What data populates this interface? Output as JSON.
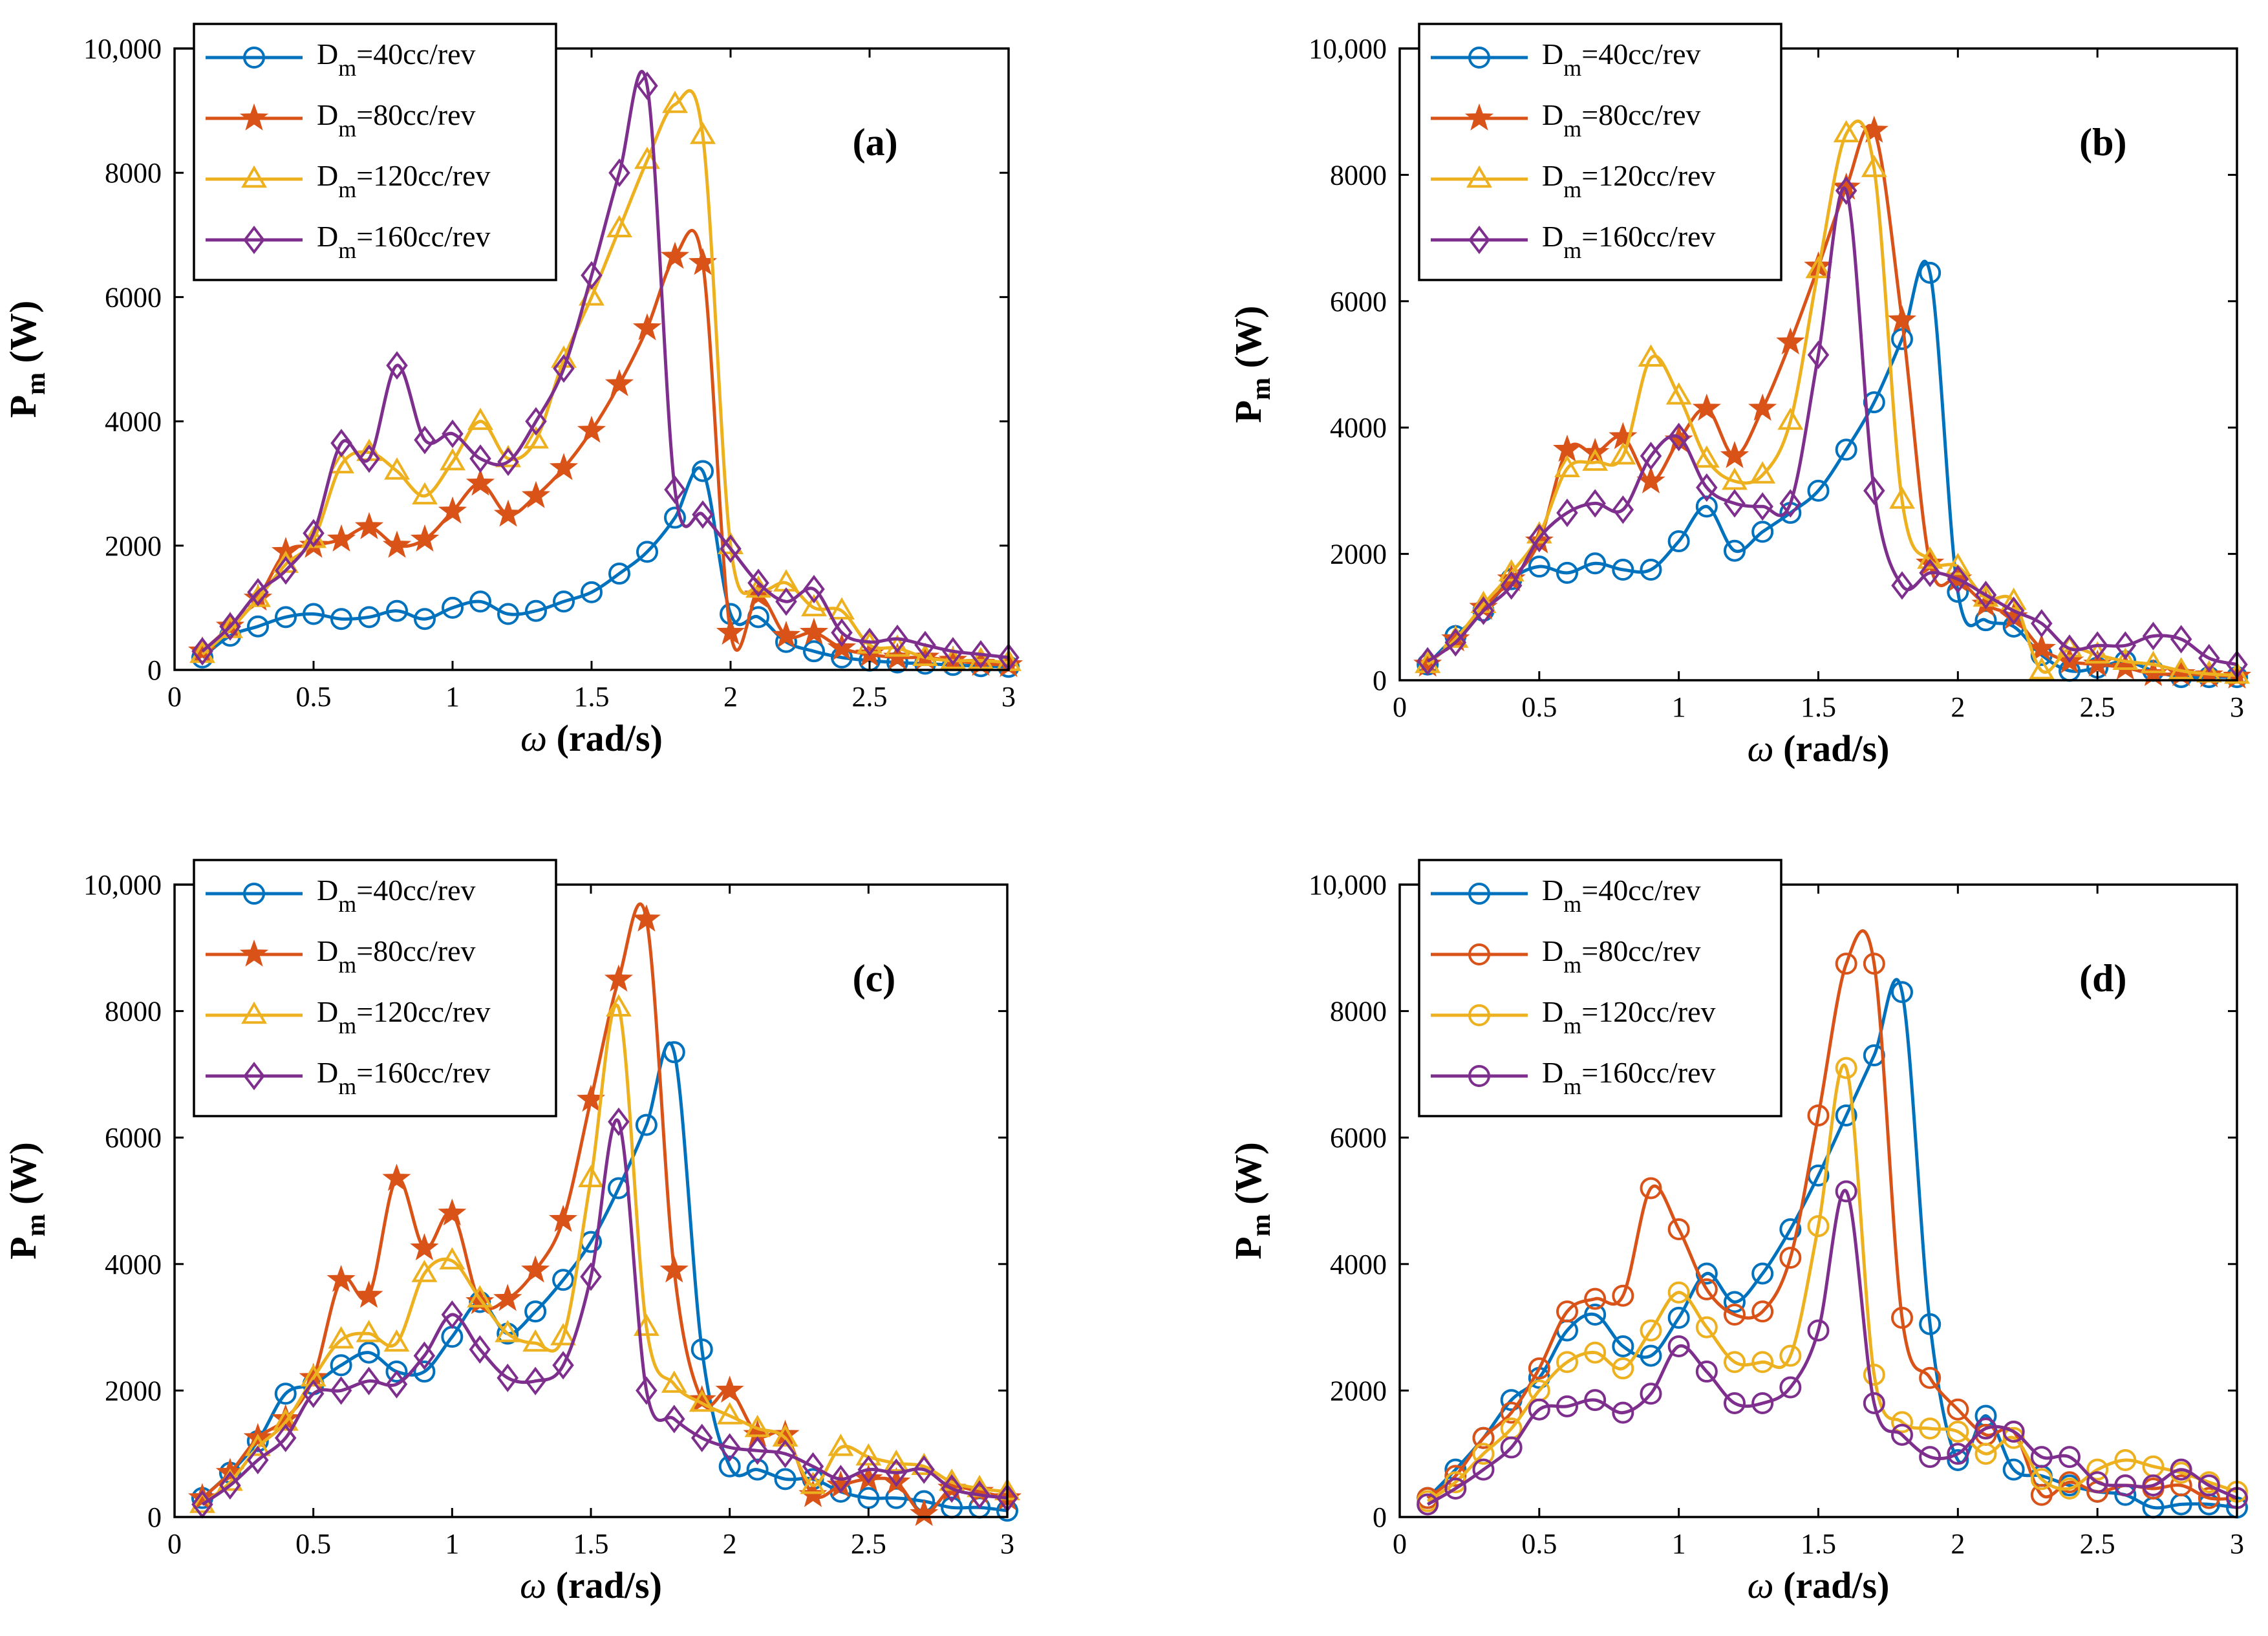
{
  "chart_data": [
    {
      "type": "line",
      "panel_label": "(a)",
      "xlabel": "ω (rad/s)",
      "ylabel": "Pm (W)",
      "xlim": [
        0,
        3
      ],
      "ylim": [
        0,
        10000
      ],
      "xticks": [
        "0",
        "0.5",
        "1",
        "1.5",
        "2",
        "2.5",
        "3"
      ],
      "yticks": [
        "0",
        "2000",
        "4000",
        "6000",
        "8000",
        "10,000"
      ],
      "legend_position": "top-left",
      "x": [
        0.1,
        0.2,
        0.3,
        0.4,
        0.5,
        0.6,
        0.7,
        0.8,
        0.9,
        1.0,
        1.1,
        1.2,
        1.3,
        1.4,
        1.5,
        1.6,
        1.7,
        1.8,
        1.9,
        2.0,
        2.1,
        2.2,
        2.3,
        2.4,
        2.5,
        2.6,
        2.7,
        2.8,
        2.9,
        3.0
      ],
      "series": [
        {
          "name": "Dm=40cc/rev",
          "legend_main": "D",
          "legend_sub": "m",
          "legend_rest": "=40cc/rev",
          "color": "#0072BD",
          "marker": "circle",
          "values": [
            200,
            550,
            700,
            850,
            900,
            820,
            850,
            950,
            820,
            1000,
            1100,
            900,
            950,
            1100,
            1250,
            1550,
            1900,
            2450,
            3200,
            900,
            850,
            450,
            300,
            200,
            150,
            120,
            100,
            80,
            60,
            50
          ]
        },
        {
          "name": "Dm=80cc/rev",
          "legend_main": "D",
          "legend_sub": "m",
          "legend_rest": "=80cc/rev",
          "color": "#D95319",
          "marker": "star",
          "values": [
            300,
            700,
            1150,
            1900,
            2000,
            2100,
            2300,
            2000,
            2100,
            2550,
            3000,
            2500,
            2800,
            3250,
            3850,
            4600,
            5500,
            6650,
            6550,
            600,
            1200,
            550,
            600,
            350,
            250,
            200,
            200,
            150,
            100,
            80
          ]
        },
        {
          "name": "Dm=120cc/rev",
          "legend_main": "D",
          "legend_sub": "m",
          "legend_rest": "=120cc/rev",
          "color": "#EDB120",
          "marker": "triangle",
          "values": [
            250,
            650,
            1150,
            1700,
            2100,
            3300,
            3500,
            3200,
            2800,
            3350,
            4000,
            3400,
            3700,
            5000,
            6000,
            7100,
            8200,
            9100,
            8600,
            2000,
            1300,
            1400,
            1000,
            950,
            400,
            350,
            200,
            150,
            150,
            120
          ]
        },
        {
          "name": "Dm=160cc/rev",
          "legend_main": "D",
          "legend_sub": "m",
          "legend_rest": "=160cc/rev",
          "color": "#7E2F8E",
          "marker": "diamond",
          "values": [
            300,
            700,
            1250,
            1600,
            2200,
            3650,
            3400,
            4900,
            3700,
            3800,
            3400,
            3350,
            4000,
            4850,
            6350,
            8000,
            9400,
            2900,
            2500,
            1950,
            1400,
            1100,
            1300,
            600,
            450,
            500,
            400,
            300,
            250,
            200
          ]
        }
      ]
    },
    {
      "type": "line",
      "panel_label": "(b)",
      "xlabel": "ω (rad/s)",
      "ylabel": "Pm (W)",
      "xlim": [
        0,
        3
      ],
      "ylim": [
        0,
        10000
      ],
      "xticks": [
        "0",
        "0.5",
        "1",
        "1.5",
        "2",
        "2.5",
        "3"
      ],
      "yticks": [
        "0",
        "2000",
        "4000",
        "6000",
        "8000",
        "10,000"
      ],
      "legend_position": "top-left",
      "x": [
        0.1,
        0.2,
        0.3,
        0.4,
        0.5,
        0.6,
        0.7,
        0.8,
        0.9,
        1.0,
        1.1,
        1.2,
        1.3,
        1.4,
        1.5,
        1.6,
        1.7,
        1.8,
        1.9,
        2.0,
        2.1,
        2.2,
        2.3,
        2.4,
        2.5,
        2.6,
        2.7,
        2.8,
        2.9,
        3.0
      ],
      "series": [
        {
          "name": "Dm=40cc/rev",
          "legend_main": "D",
          "legend_sub": "m",
          "legend_rest": "=40cc/rev",
          "color": "#0072BD",
          "marker": "circle",
          "values": [
            250,
            700,
            1100,
            1600,
            1800,
            1700,
            1850,
            1750,
            1750,
            2200,
            2750,
            2050,
            2350,
            2650,
            3000,
            3650,
            4400,
            5400,
            6450,
            1400,
            950,
            850,
            400,
            150,
            200,
            300,
            150,
            50,
            50,
            50
          ]
        },
        {
          "name": "Dm=80cc/rev",
          "legend_main": "D",
          "legend_sub": "m",
          "legend_rest": "=80cc/rev",
          "color": "#D95319",
          "marker": "star",
          "values": [
            250,
            650,
            1150,
            1600,
            2200,
            3650,
            3600,
            3850,
            3150,
            3800,
            4300,
            3550,
            4300,
            5350,
            6550,
            7800,
            8700,
            5700,
            1850,
            1600,
            1200,
            1000,
            500,
            300,
            250,
            200,
            100,
            100,
            80,
            60
          ]
        },
        {
          "name": "Dm=120cc/rev",
          "legend_main": "D",
          "legend_sub": "m",
          "legend_rest": "=120cc/rev",
          "color": "#EDB120",
          "marker": "triangle",
          "values": [
            250,
            650,
            1200,
            1700,
            2300,
            3350,
            3450,
            3550,
            5100,
            4500,
            3500,
            3150,
            3250,
            4100,
            6500,
            8650,
            8100,
            2850,
            1900,
            1800,
            1300,
            1250,
            150,
            500,
            400,
            300,
            250,
            150,
            100,
            80
          ]
        },
        {
          "name": "Dm=160cc/rev",
          "legend_main": "D",
          "legend_sub": "m",
          "legend_rest": "=160cc/rev",
          "color": "#7E2F8E",
          "marker": "diamond",
          "values": [
            300,
            600,
            1100,
            1500,
            2250,
            2650,
            2800,
            2700,
            3550,
            3850,
            3050,
            2800,
            2750,
            2800,
            5150,
            7750,
            3000,
            1500,
            1700,
            1600,
            1350,
            1100,
            900,
            500,
            550,
            550,
            700,
            650,
            350,
            250
          ]
        }
      ]
    },
    {
      "type": "line",
      "panel_label": "(c)",
      "xlabel": "ω (rad/s)",
      "ylabel": "Pm (W)",
      "xlim": [
        0,
        3
      ],
      "ylim": [
        0,
        10000
      ],
      "xticks": [
        "0",
        "0.5",
        "1",
        "1.5",
        "2",
        "2.5",
        "3"
      ],
      "yticks": [
        "0",
        "2000",
        "4000",
        "6000",
        "8000",
        "10,000"
      ],
      "legend_position": "top-left",
      "x": [
        0.1,
        0.2,
        0.3,
        0.4,
        0.5,
        0.6,
        0.7,
        0.8,
        0.9,
        1.0,
        1.1,
        1.2,
        1.3,
        1.4,
        1.5,
        1.6,
        1.7,
        1.8,
        1.9,
        2.0,
        2.1,
        2.2,
        2.3,
        2.4,
        2.5,
        2.6,
        2.7,
        2.8,
        2.9,
        3.0
      ],
      "series": [
        {
          "name": "Dm=40cc/rev",
          "legend_main": "D",
          "legend_sub": "m",
          "legend_rest": "=40cc/rev",
          "color": "#0072BD",
          "marker": "circle",
          "values": [
            300,
            700,
            1200,
            1950,
            2100,
            2400,
            2600,
            2300,
            2300,
            2850,
            3400,
            2900,
            3250,
            3750,
            4350,
            5200,
            6200,
            7350,
            2650,
            800,
            750,
            600,
            600,
            400,
            300,
            300,
            250,
            150,
            150,
            100
          ]
        },
        {
          "name": "Dm=80cc/rev",
          "legend_main": "D",
          "legend_sub": "m",
          "legend_rest": "=80cc/rev",
          "color": "#D95319",
          "marker": "star",
          "values": [
            300,
            700,
            1250,
            1550,
            2200,
            3750,
            3500,
            5350,
            4250,
            4800,
            3400,
            3450,
            3900,
            4700,
            6600,
            8500,
            9450,
            3900,
            1850,
            2000,
            1300,
            1300,
            350,
            500,
            600,
            550,
            50,
            450,
            400,
            300
          ]
        },
        {
          "name": "Dm=120cc/rev",
          "legend_main": "D",
          "legend_sub": "m",
          "legend_rest": "=120cc/rev",
          "color": "#EDB120",
          "marker": "triangle",
          "values": [
            200,
            550,
            1100,
            1500,
            2200,
            2800,
            2900,
            2750,
            3850,
            4050,
            3450,
            2900,
            2750,
            2850,
            5350,
            8050,
            3000,
            2100,
            1800,
            1600,
            1400,
            1250,
            500,
            1100,
            950,
            850,
            800,
            550,
            450,
            400
          ]
        },
        {
          "name": "Dm=160cc/rev",
          "legend_main": "D",
          "legend_sub": "m",
          "legend_rest": "=160cc/rev",
          "color": "#7E2F8E",
          "marker": "diamond",
          "values": [
            200,
            500,
            900,
            1250,
            1950,
            2000,
            2150,
            2100,
            2550,
            3200,
            2650,
            2200,
            2150,
            2400,
            3800,
            6250,
            2000,
            1550,
            1250,
            1100,
            1050,
            1000,
            800,
            600,
            750,
            700,
            750,
            450,
            350,
            300
          ]
        }
      ]
    },
    {
      "type": "line",
      "panel_label": "(d)",
      "xlabel": "ω (rad/s)",
      "ylabel": "Pm (W)",
      "xlim": [
        0,
        3
      ],
      "ylim": [
        0,
        10000
      ],
      "xticks": [
        "0",
        "0.5",
        "1",
        "1.5",
        "2",
        "2.5",
        "3"
      ],
      "yticks": [
        "0",
        "2000",
        "4000",
        "6000",
        "8000",
        "10,000"
      ],
      "legend_position": "top-left",
      "x": [
        0.1,
        0.2,
        0.3,
        0.4,
        0.5,
        0.6,
        0.7,
        0.8,
        0.9,
        1.0,
        1.1,
        1.2,
        1.3,
        1.4,
        1.5,
        1.6,
        1.7,
        1.8,
        1.9,
        2.0,
        2.1,
        2.2,
        2.3,
        2.4,
        2.5,
        2.6,
        2.7,
        2.8,
        2.9,
        3.0
      ],
      "series": [
        {
          "name": "Dm=40cc/rev",
          "legend_main": "D",
          "legend_sub": "m",
          "legend_rest": "=40cc/rev",
          "color": "#0072BD",
          "marker": "circle",
          "values": [
            300,
            750,
            1250,
            1850,
            2200,
            2950,
            3200,
            2700,
            2550,
            3150,
            3850,
            3400,
            3850,
            4550,
            5400,
            6350,
            7300,
            8300,
            3050,
            900,
            1600,
            750,
            650,
            500,
            400,
            350,
            150,
            200,
            200,
            150
          ]
        },
        {
          "name": "Dm=80cc/rev",
          "legend_main": "D",
          "legend_sub": "m",
          "legend_rest": "=80cc/rev",
          "color": "#D95319",
          "marker": "circle",
          "values": [
            300,
            650,
            1250,
            1650,
            2350,
            3250,
            3450,
            3500,
            5200,
            4550,
            3600,
            3200,
            3250,
            4100,
            6350,
            8750,
            8750,
            3150,
            2200,
            1700,
            1300,
            1350,
            350,
            550,
            400,
            500,
            450,
            500,
            300,
            300
          ]
        },
        {
          "name": "Dm=120cc/rev",
          "legend_main": "D",
          "legend_sub": "m",
          "legend_rest": "=120cc/rev",
          "color": "#EDB120",
          "marker": "circle",
          "values": [
            250,
            550,
            1000,
            1400,
            2000,
            2450,
            2600,
            2350,
            2950,
            3550,
            3000,
            2450,
            2450,
            2550,
            4600,
            7100,
            2250,
            1500,
            1400,
            1350,
            1000,
            1250,
            600,
            450,
            750,
            900,
            800,
            700,
            550,
            400
          ]
        },
        {
          "name": "Dm=160cc/rev",
          "legend_main": "D",
          "legend_sub": "m",
          "legend_rest": "=160cc/rev",
          "color": "#7E2F8E",
          "marker": "circle",
          "values": [
            200,
            450,
            750,
            1100,
            1700,
            1750,
            1850,
            1650,
            1950,
            2700,
            2300,
            1800,
            1800,
            2050,
            2950,
            5150,
            1800,
            1300,
            950,
            1000,
            1400,
            1350,
            950,
            950,
            550,
            500,
            500,
            750,
            500,
            300
          ]
        }
      ]
    }
  ]
}
